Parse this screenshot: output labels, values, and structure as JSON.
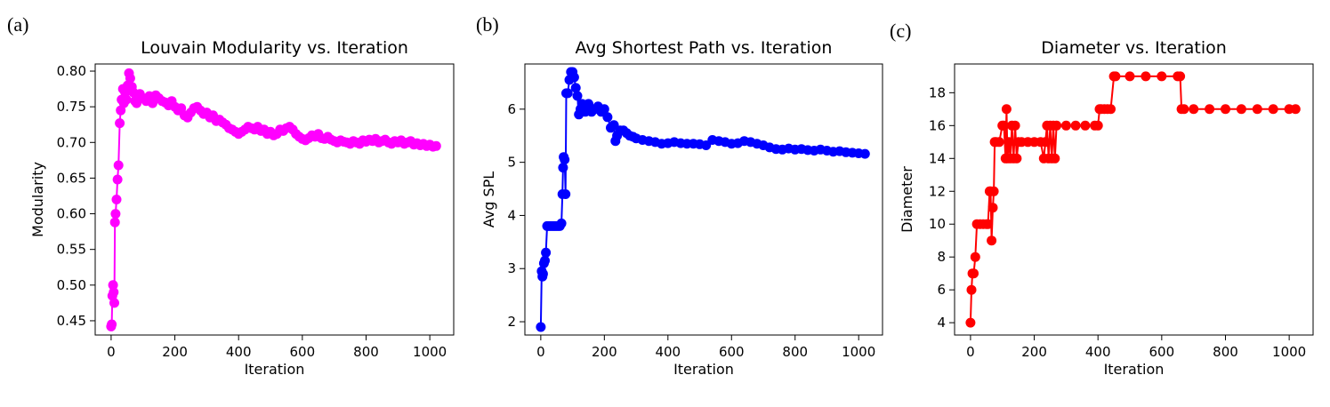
{
  "chart_data": [
    {
      "type": "line",
      "panel": "(a)",
      "title": "Louvain Modularity vs. Iteration",
      "xlabel": "Iteration",
      "ylabel": "Modularity",
      "xlim": [
        -50,
        1075
      ],
      "ylim": [
        0.43,
        0.81
      ],
      "xticks": [
        0,
        200,
        400,
        600,
        800,
        1000
      ],
      "yticks": [
        0.45,
        0.5,
        0.55,
        0.6,
        0.65,
        0.7,
        0.75,
        0.8
      ],
      "ytick_labels": [
        "0.45",
        "0.50",
        "0.55",
        "0.60",
        "0.65",
        "0.70",
        "0.75",
        "0.80"
      ],
      "color": "#ff00ff",
      "series": [
        {
          "name": "Modularity",
          "x": [
            0,
            2,
            4,
            6,
            8,
            10,
            12,
            14,
            17,
            20,
            23,
            27,
            30,
            33,
            37,
            40,
            44,
            48,
            52,
            56,
            60,
            65,
            70,
            75,
            80,
            90,
            100,
            110,
            120,
            130,
            140,
            150,
            160,
            170,
            180,
            190,
            200,
            210,
            220,
            230,
            240,
            250,
            260,
            270,
            280,
            290,
            300,
            310,
            320,
            330,
            340,
            350,
            360,
            370,
            380,
            390,
            400,
            410,
            420,
            430,
            440,
            450,
            460,
            470,
            480,
            490,
            500,
            510,
            520,
            530,
            540,
            550,
            560,
            570,
            580,
            590,
            600,
            610,
            620,
            630,
            640,
            650,
            660,
            670,
            680,
            690,
            700,
            710,
            720,
            730,
            740,
            750,
            760,
            770,
            780,
            790,
            800,
            810,
            820,
            830,
            840,
            850,
            860,
            870,
            880,
            890,
            900,
            910,
            920,
            930,
            940,
            950,
            960,
            970,
            980,
            990,
            1000,
            1010,
            1020
          ],
          "y": [
            0.442,
            0.445,
            0.485,
            0.5,
            0.49,
            0.475,
            0.588,
            0.6,
            0.62,
            0.648,
            0.668,
            0.727,
            0.745,
            0.76,
            0.775,
            0.755,
            0.77,
            0.76,
            0.78,
            0.797,
            0.79,
            0.778,
            0.77,
            0.758,
            0.755,
            0.768,
            0.762,
            0.758,
            0.765,
            0.755,
            0.766,
            0.762,
            0.758,
            0.756,
            0.752,
            0.758,
            0.75,
            0.745,
            0.748,
            0.738,
            0.735,
            0.742,
            0.748,
            0.75,
            0.745,
            0.74,
            0.742,
            0.735,
            0.738,
            0.73,
            0.732,
            0.728,
            0.725,
            0.72,
            0.718,
            0.715,
            0.712,
            0.715,
            0.718,
            0.722,
            0.72,
            0.718,
            0.722,
            0.716,
            0.718,
            0.712,
            0.715,
            0.71,
            0.712,
            0.718,
            0.716,
            0.72,
            0.722,
            0.718,
            0.712,
            0.708,
            0.705,
            0.703,
            0.706,
            0.71,
            0.708,
            0.712,
            0.706,
            0.705,
            0.708,
            0.704,
            0.702,
            0.7,
            0.703,
            0.701,
            0.7,
            0.698,
            0.702,
            0.7,
            0.698,
            0.703,
            0.701,
            0.704,
            0.702,
            0.705,
            0.7,
            0.702,
            0.704,
            0.7,
            0.698,
            0.702,
            0.7,
            0.703,
            0.698,
            0.7,
            0.702,
            0.697,
            0.699,
            0.696,
            0.698,
            0.695,
            0.697,
            0.694,
            0.695
          ]
        }
      ]
    },
    {
      "type": "line",
      "panel": "(b)",
      "title": "Avg Shortest Path vs. Iteration",
      "xlabel": "Iteration",
      "ylabel": "Avg SPL",
      "xlim": [
        -50,
        1075
      ],
      "ylim": [
        1.75,
        6.85
      ],
      "xticks": [
        0,
        200,
        400,
        600,
        800,
        1000
      ],
      "yticks": [
        2,
        3,
        4,
        5,
        6
      ],
      "ytick_labels": [
        "2",
        "3",
        "4",
        "5",
        "6"
      ],
      "color": "#0000ff",
      "series": [
        {
          "name": "Avg SPL",
          "x": [
            0,
            3,
            5,
            7,
            10,
            13,
            16,
            20,
            25,
            30,
            35,
            40,
            45,
            50,
            55,
            60,
            65,
            68,
            70,
            72,
            75,
            78,
            80,
            85,
            90,
            95,
            100,
            105,
            110,
            115,
            120,
            125,
            130,
            140,
            150,
            160,
            170,
            180,
            190,
            200,
            210,
            220,
            230,
            235,
            240,
            250,
            260,
            270,
            280,
            290,
            300,
            320,
            340,
            360,
            380,
            400,
            420,
            440,
            460,
            480,
            500,
            520,
            540,
            560,
            580,
            600,
            620,
            640,
            660,
            680,
            700,
            720,
            740,
            760,
            780,
            800,
            820,
            840,
            860,
            880,
            900,
            920,
            940,
            960,
            980,
            1000,
            1020
          ],
          "y": [
            1.9,
            2.95,
            2.85,
            2.9,
            3.1,
            3.15,
            3.3,
            3.8,
            3.8,
            3.8,
            3.8,
            3.8,
            3.8,
            3.8,
            3.8,
            3.8,
            3.85,
            4.4,
            4.9,
            5.1,
            5.05,
            4.4,
            6.3,
            6.3,
            6.55,
            6.7,
            6.7,
            6.6,
            6.4,
            6.25,
            5.9,
            6.0,
            6.1,
            5.95,
            6.1,
            5.95,
            6.0,
            6.05,
            5.95,
            6.0,
            5.85,
            5.65,
            5.7,
            5.4,
            5.5,
            5.6,
            5.6,
            5.55,
            5.5,
            5.48,
            5.45,
            5.42,
            5.4,
            5.38,
            5.35,
            5.36,
            5.38,
            5.36,
            5.35,
            5.35,
            5.34,
            5.32,
            5.42,
            5.4,
            5.38,
            5.35,
            5.36,
            5.4,
            5.38,
            5.35,
            5.32,
            5.28,
            5.25,
            5.24,
            5.26,
            5.24,
            5.25,
            5.23,
            5.22,
            5.24,
            5.22,
            5.2,
            5.21,
            5.19,
            5.18,
            5.17,
            5.16
          ]
        }
      ]
    },
    {
      "type": "line",
      "panel": "(c)",
      "title": "Diameter vs. Iteration",
      "xlabel": "Iteration",
      "ylabel": "Diameter",
      "xlim": [
        -50,
        1075
      ],
      "ylim": [
        3.25,
        19.75
      ],
      "xticks": [
        0,
        200,
        400,
        600,
        800,
        1000
      ],
      "yticks": [
        4,
        6,
        8,
        10,
        12,
        14,
        16,
        18
      ],
      "ytick_labels": [
        "4",
        "6",
        "8",
        "10",
        "12",
        "14",
        "16",
        "18"
      ],
      "color": "#ff0000",
      "series": [
        {
          "name": "Diameter",
          "x": [
            0,
            3,
            6,
            10,
            15,
            20,
            30,
            40,
            50,
            55,
            60,
            63,
            66,
            70,
            73,
            76,
            80,
            90,
            100,
            105,
            110,
            113,
            116,
            120,
            125,
            130,
            135,
            140,
            145,
            150,
            160,
            180,
            200,
            220,
            230,
            235,
            240,
            245,
            250,
            255,
            260,
            265,
            270,
            300,
            330,
            360,
            390,
            400,
            405,
            410,
            420,
            430,
            440,
            450,
            455,
            500,
            550,
            600,
            650,
            658,
            662,
            670,
            700,
            750,
            800,
            850,
            900,
            950,
            1000,
            1020
          ],
          "y": [
            4,
            6,
            7,
            7,
            8,
            10,
            10,
            10,
            10,
            10,
            12,
            12,
            9,
            11,
            12,
            15,
            15,
            15,
            16,
            16,
            14,
            17,
            14,
            15,
            14,
            16,
            14,
            16,
            14,
            15,
            15,
            15,
            15,
            15,
            14,
            15,
            16,
            14,
            16,
            14,
            16,
            14,
            16,
            16,
            16,
            16,
            16,
            16,
            17,
            17,
            17,
            17,
            17,
            19,
            19,
            19,
            19,
            19,
            19,
            19,
            17,
            17,
            17,
            17,
            17,
            17,
            17,
            17,
            17,
            17
          ]
        }
      ]
    }
  ]
}
